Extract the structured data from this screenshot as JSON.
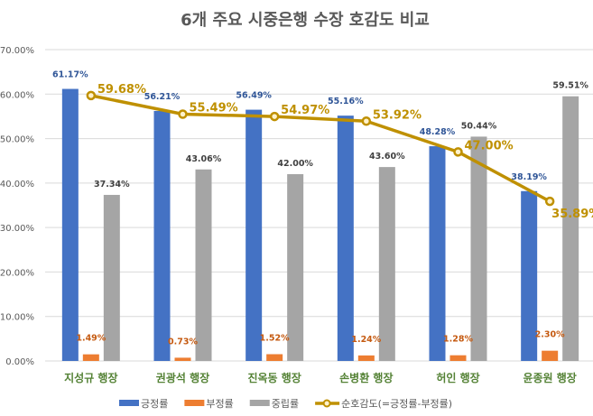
{
  "chart_data": {
    "type": "bar",
    "title": "6개 주요 시중은행 수장 호감도 비교",
    "categories": [
      "지성규 행장",
      "권광석 행장",
      "진옥동 행장",
      "손병환 행장",
      "허인 행장",
      "윤종원 행장"
    ],
    "ylim": [
      0,
      70
    ],
    "yticks": [
      "0.00%",
      "10.00%",
      "20.00%",
      "30.00%",
      "40.00%",
      "50.00%",
      "60.00%",
      "70.00%"
    ],
    "grid": true,
    "legend_position": "bottom",
    "series": [
      {
        "name": "긍정률",
        "kind": "bar",
        "color": "#4472C4",
        "label_color": "#2F5597",
        "values": [
          61.17,
          56.21,
          56.49,
          55.16,
          48.28,
          38.19
        ],
        "labels": [
          "61.17%",
          "56.21%",
          "56.49%",
          "55.16%",
          "48.28%",
          "38.19%"
        ]
      },
      {
        "name": "부정률",
        "kind": "bar",
        "color": "#ED7D31",
        "label_color": "#C55A11",
        "values": [
          1.49,
          0.73,
          1.52,
          1.24,
          1.28,
          2.3
        ],
        "labels": [
          "1.49%",
          "0.73%",
          "1.52%",
          "1.24%",
          "1.28%",
          "2.30%"
        ]
      },
      {
        "name": "중립률",
        "kind": "bar",
        "color": "#A5A5A5",
        "label_color": "#404040",
        "values": [
          37.34,
          43.06,
          42.0,
          43.6,
          50.44,
          59.51
        ],
        "labels": [
          "37.34%",
          "43.06%",
          "42.00%",
          "43.60%",
          "50.44%",
          "59.51%"
        ]
      },
      {
        "name": "순호감도(=긍정률-부정률)",
        "kind": "line",
        "color": "#BF9000",
        "label_color": "#BF9000",
        "values": [
          59.68,
          55.49,
          54.97,
          53.92,
          47.0,
          35.89
        ],
        "labels": [
          "59.68%",
          "55.49%",
          "54.97%",
          "53.92%",
          "47.00%",
          "35.89%"
        ]
      }
    ],
    "category_label_color": "#548235"
  }
}
